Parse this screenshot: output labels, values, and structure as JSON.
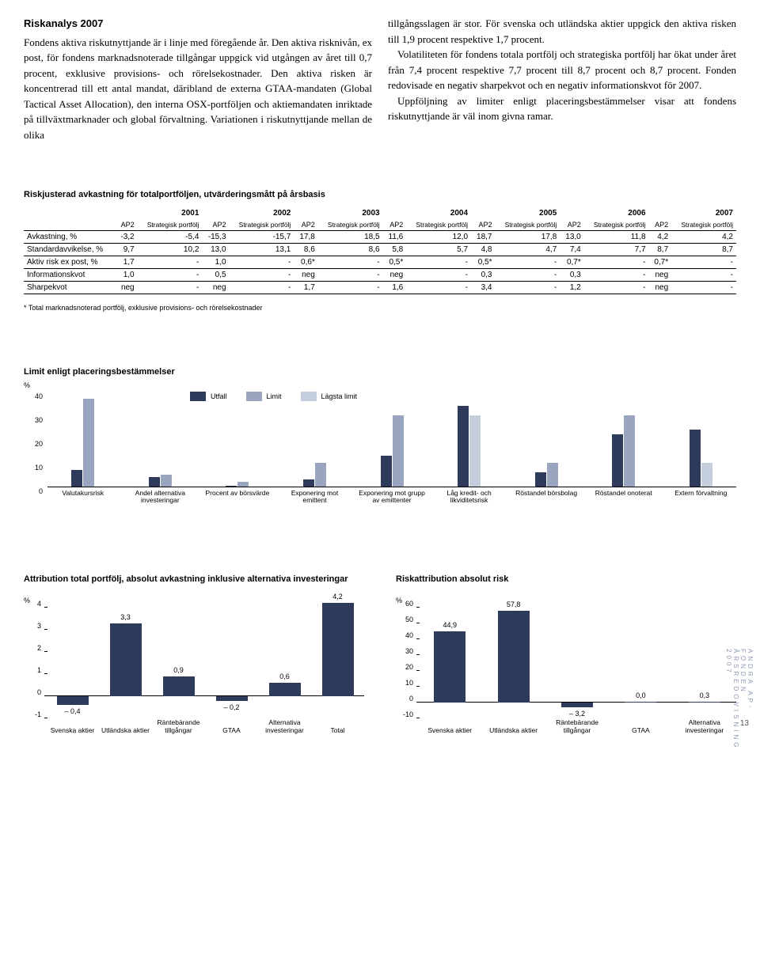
{
  "body": {
    "heading": "Riskanalys 2007",
    "col1": "Fondens aktiva riskutnyttjande är i linje med föregående år. Den aktiva risknivån, ex post, för fondens marknadsnoterade tillgångar uppgick vid utgången av året till 0,7 procent, exklusive provisions- och rörelsekostnader. Den aktiva risken är koncentrerad till ett antal mandat, däribland de externa GTAA-mandaten (Global Tactical Asset Allocation), den interna OSX-portföljen och aktiemandaten inriktade på tillväxtmarknader och global förvaltning. Variationen i riskutnyttjande mellan de olika",
    "col2_a": "tillgångsslagen är stor. För svenska och utländska aktier uppgick den aktiva risken till 1,9 procent respektive 1,7 procent.",
    "col2_b": "Volatiliteten för fondens totala portfölj och strategiska portfölj har ökat under året från 7,4 procent respektive 7,7 procent till 8,7 procent och 8,7 procent. Fonden redovisade en negativ sharpekvot och en negativ informationskvot för 2007.",
    "col2_c": "Uppföljning av limiter enligt placeringsbestämmelser visar att fondens riskutnyttjande är väl inom givna ramar."
  },
  "table": {
    "title": "Riskjusterad avkastning för totalportföljen, utvärderingsmått på årsbasis",
    "years": [
      "2001",
      "2002",
      "2003",
      "2004",
      "2005",
      "2006",
      "2007"
    ],
    "sub1": "AP2",
    "sub2": "Strategisk portfölj",
    "rows": [
      {
        "label": "Avkastning, %",
        "cells": [
          "-3,2",
          "-5,4",
          "-15,3",
          "-15,7",
          "17,8",
          "18,5",
          "11,6",
          "12,0",
          "18,7",
          "17,8",
          "13,0",
          "11,8",
          "4,2",
          "4,2"
        ]
      },
      {
        "label": "Standardavvikelse, %",
        "cells": [
          "9,7",
          "10,2",
          "13,0",
          "13,1",
          "8,6",
          "8,6",
          "5,8",
          "5,7",
          "4,8",
          "4,7",
          "7,4",
          "7,7",
          "8,7",
          "8,7"
        ]
      },
      {
        "label": "Aktiv risk ex post, %",
        "cells": [
          "1,7",
          "-",
          "1,0",
          "-",
          "0,6*",
          "-",
          "0,5*",
          "-",
          "0,5*",
          "-",
          "0,7*",
          "-",
          "0,7*",
          "-"
        ]
      },
      {
        "label": "Informationskvot",
        "cells": [
          "1,0",
          "-",
          "0,5",
          "-",
          "neg",
          "-",
          "neg",
          "-",
          "0,3",
          "-",
          "0,3",
          "-",
          "neg",
          "-"
        ]
      },
      {
        "label": "Sharpekvot",
        "cells": [
          "neg",
          "-",
          "neg",
          "-",
          "1,7",
          "-",
          "1,6",
          "-",
          "3,4",
          "-",
          "1,2",
          "-",
          "neg",
          "-"
        ]
      }
    ],
    "footnote": "* Total marknadsnoterad portfölj, exklusive provisions- och rörelsekostnader"
  },
  "chart1": {
    "title": "Limit enligt placeringsbestämmelser",
    "yunit": "%",
    "ymax": 40,
    "ytick_step": 10,
    "legend": [
      {
        "label": "Utfall",
        "color": "#2e3a5c"
      },
      {
        "label": "Limit",
        "color": "#9aa5bf"
      },
      {
        "label": "Lägsta limit",
        "color": "#c5cedd"
      }
    ],
    "categories": [
      {
        "label": "Valutakursrisk",
        "bars": [
          {
            "v": 7,
            "c": "#2e3a5c"
          },
          {
            "v": 37,
            "c": "#9aa5bf"
          }
        ]
      },
      {
        "label": "Andel alternativa investeringar",
        "bars": [
          {
            "v": 4,
            "c": "#2e3a5c"
          },
          {
            "v": 5,
            "c": "#9aa5bf"
          }
        ]
      },
      {
        "label": "Procent av börsvärde",
        "bars": [
          {
            "v": 0.5,
            "c": "#2e3a5c"
          },
          {
            "v": 2,
            "c": "#9aa5bf"
          }
        ]
      },
      {
        "label": "Exponering mot emittent",
        "bars": [
          {
            "v": 3,
            "c": "#2e3a5c"
          },
          {
            "v": 10,
            "c": "#9aa5bf"
          }
        ]
      },
      {
        "label": "Exponering mot grupp av emittenter",
        "bars": [
          {
            "v": 13,
            "c": "#2e3a5c"
          },
          {
            "v": 30,
            "c": "#9aa5bf"
          }
        ]
      },
      {
        "label": "Låg kredit- och likviditetsrisk",
        "bars": [
          {
            "v": 34,
            "c": "#2e3a5c"
          },
          {
            "v": 30,
            "c": "#c5cedd"
          }
        ]
      },
      {
        "label": "Röstandel börsbolag",
        "bars": [
          {
            "v": 6,
            "c": "#2e3a5c"
          },
          {
            "v": 10,
            "c": "#9aa5bf"
          }
        ]
      },
      {
        "label": "Röstandel onoterat",
        "bars": [
          {
            "v": 22,
            "c": "#2e3a5c"
          },
          {
            "v": 30,
            "c": "#9aa5bf"
          }
        ]
      },
      {
        "label": "Extern förvaltning",
        "bars": [
          {
            "v": 24,
            "c": "#2e3a5c"
          },
          {
            "v": 10,
            "c": "#c5cedd"
          }
        ]
      }
    ]
  },
  "chart2": {
    "title": "Attribution total portfölj, absolut avkastning inklusive alternativa investeringar",
    "yunit": "%",
    "ymax": 4,
    "ymin": -1,
    "step": 1,
    "color": "#2e3a5c",
    "bars": [
      {
        "label": "Svenska aktier",
        "v": -0.4,
        "display": "– 0,4"
      },
      {
        "label": "Utländska aktier",
        "v": 3.3,
        "display": "3,3"
      },
      {
        "label": "Räntebärande tillgångar",
        "v": 0.9,
        "display": "0,9"
      },
      {
        "label": "GTAA",
        "v": -0.2,
        "display": "– 0,2"
      },
      {
        "label": "Alternativa investeringar",
        "v": 0.6,
        "display": "0,6"
      },
      {
        "label": "Total",
        "v": 4.2,
        "display": "4,2"
      }
    ]
  },
  "chart3": {
    "title": "Riskattribution absolut risk",
    "yunit": "%",
    "ymax": 60,
    "ymin": -10,
    "step": 10,
    "color": "#2e3a5c",
    "bars": [
      {
        "label": "Svenska aktier",
        "v": 44.9,
        "display": "44,9"
      },
      {
        "label": "Utländska aktier",
        "v": 57.8,
        "display": "57,8"
      },
      {
        "label": "Räntebärande tillgångar",
        "v": -3.2,
        "display": "– 3,2"
      },
      {
        "label": "GTAA",
        "v": 0.0,
        "display": "0,0"
      },
      {
        "label": "Alternativa investeringar",
        "v": 0.3,
        "display": "0,3"
      }
    ]
  },
  "sidebar_text": "ANDRA AP-FONDEN ÅRSREDOVISNING 2007",
  "page_number": "13"
}
